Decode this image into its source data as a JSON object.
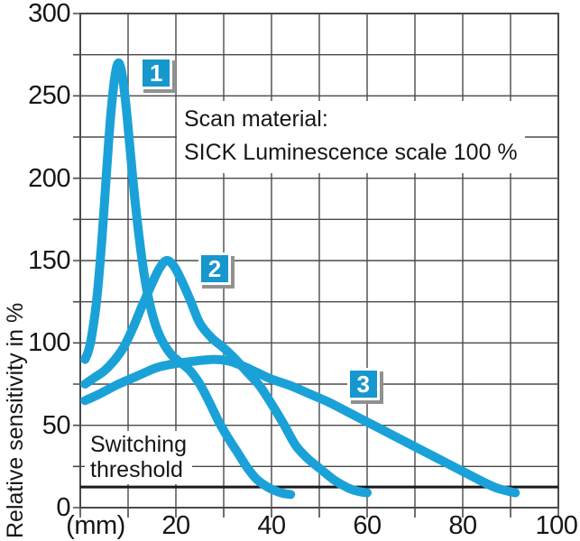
{
  "colors": {
    "curve_blue": "#1aa2d8",
    "badge_blue": "#1697cd",
    "badge_shadow": "#919191",
    "grid_gray": "#4a4a4a",
    "threshold_black": "#1a1a1a",
    "text_black": "#161616"
  },
  "ticks": {
    "y": [
      "300",
      "250",
      "200",
      "150",
      "100",
      "50",
      "0"
    ],
    "x": [
      "(mm)",
      "20",
      "40",
      "60",
      "80",
      "100"
    ]
  },
  "notes": {
    "scan_line1": "Scan material:",
    "scan_line2": "SICK Luminescence scale 100 %",
    "threshold_line1": "Switching",
    "threshold_line2": "threshold"
  },
  "chart_data": {
    "type": "line",
    "title": "",
    "xlabel": "(mm)",
    "ylabel": "Relative sensitivity in %",
    "xlim": [
      0,
      100
    ],
    "ylim": [
      0,
      300
    ],
    "x_label_step": 20,
    "y_label_step": 50,
    "x_grid_step_mm": 10,
    "y_grid_step_pct": 25,
    "grid": true,
    "legend_position": "none",
    "annotations": [
      "Scan material: SICK Luminescence scale 100 %",
      "Switching threshold"
    ],
    "switching_threshold_pct": 12.5,
    "series": [
      {
        "name": "1",
        "points": [
          [
            1,
            90
          ],
          [
            1.8,
            96
          ],
          [
            2.6,
            108
          ],
          [
            3.5,
            128
          ],
          [
            4.5,
            162
          ],
          [
            5.5,
            204
          ],
          [
            6.3,
            236
          ],
          [
            7.2,
            261
          ],
          [
            8,
            270
          ],
          [
            8.8,
            262
          ],
          [
            9.6,
            243
          ],
          [
            10.5,
            215
          ],
          [
            11.5,
            185
          ],
          [
            12.8,
            153
          ],
          [
            14,
            131
          ],
          [
            15.5,
            113
          ],
          [
            17,
            102
          ],
          [
            19,
            93
          ],
          [
            21,
            88
          ],
          [
            23,
            83
          ],
          [
            25,
            75
          ],
          [
            27,
            64
          ],
          [
            29,
            52
          ],
          [
            31,
            42
          ],
          [
            33,
            33
          ],
          [
            35,
            24
          ],
          [
            37,
            17
          ],
          [
            39.5,
            12
          ],
          [
            42,
            9
          ],
          [
            44,
            8
          ]
        ]
      },
      {
        "name": "2",
        "points": [
          [
            1,
            75
          ],
          [
            3,
            79
          ],
          [
            5,
            83
          ],
          [
            7,
            89
          ],
          [
            9,
            97
          ],
          [
            11,
            109
          ],
          [
            13,
            123
          ],
          [
            15,
            136
          ],
          [
            16.5,
            145
          ],
          [
            18,
            150
          ],
          [
            19.5,
            147
          ],
          [
            21,
            139
          ],
          [
            23,
            126
          ],
          [
            25,
            112
          ],
          [
            27.5,
            103
          ],
          [
            30,
            97
          ],
          [
            32.5,
            90
          ],
          [
            35,
            82
          ],
          [
            37.5,
            74
          ],
          [
            40,
            63
          ],
          [
            42.5,
            51
          ],
          [
            45,
            38
          ],
          [
            47.5,
            30
          ],
          [
            50,
            24
          ],
          [
            53,
            17
          ],
          [
            56,
            12
          ],
          [
            58,
            10
          ],
          [
            60,
            9
          ]
        ]
      },
      {
        "name": "3",
        "points": [
          [
            1,
            65
          ],
          [
            4,
            69
          ],
          [
            8,
            75
          ],
          [
            12,
            80
          ],
          [
            16,
            85
          ],
          [
            20,
            87.5
          ],
          [
            24,
            89
          ],
          [
            28,
            90
          ],
          [
            31,
            89
          ],
          [
            34,
            86
          ],
          [
            37,
            82
          ],
          [
            40,
            78
          ],
          [
            44,
            74
          ],
          [
            48,
            69
          ],
          [
            52,
            64
          ],
          [
            56,
            58
          ],
          [
            60,
            52
          ],
          [
            64,
            46
          ],
          [
            68,
            40
          ],
          [
            72,
            34
          ],
          [
            76,
            28
          ],
          [
            80,
            22
          ],
          [
            84,
            16
          ],
          [
            87,
            12
          ],
          [
            89.5,
            10
          ],
          [
            91,
            9
          ]
        ]
      }
    ],
    "badges": [
      {
        "label": "1",
        "x_mm": 15.9,
        "y_pct": 264
      },
      {
        "label": "2",
        "x_mm": 28.1,
        "y_pct": 145
      },
      {
        "label": "3",
        "x_mm": 59.2,
        "y_pct": 75
      }
    ]
  }
}
